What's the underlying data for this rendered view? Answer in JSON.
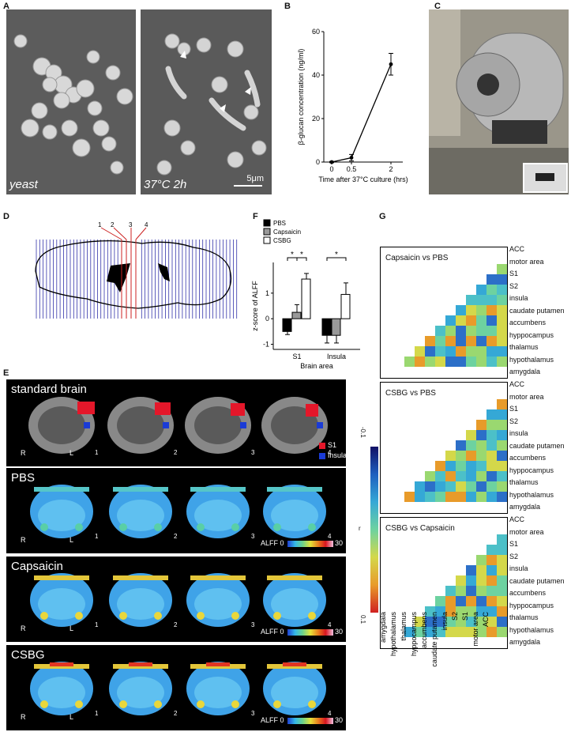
{
  "panels": {
    "A": {
      "label": "A",
      "left_caption": "yeast",
      "right_caption": "37°C 2h",
      "scale_bar": "5μm"
    },
    "B": {
      "label": "B"
    },
    "C": {
      "label": "C"
    },
    "D": {
      "label": "D",
      "slice_numbers": [
        "1",
        "2",
        "3",
        "4"
      ]
    },
    "E": {
      "label": "E",
      "rows": [
        {
          "title": "standard brain"
        },
        {
          "title": "PBS"
        },
        {
          "title": "Capsaicin"
        },
        {
          "title": "CSBG"
        }
      ],
      "side_left": "R",
      "side_right": "L",
      "legend_s1": "S1",
      "legend_insula": "Insula",
      "cb_label": "ALFF",
      "cb_min": "0",
      "cb_max": "30",
      "slice_numbers": [
        "1",
        "2",
        "3",
        "4"
      ]
    },
    "F": {
      "label": "F"
    },
    "G": {
      "label": "G",
      "matrices": [
        {
          "title": "Capsaicin vs PBS"
        },
        {
          "title": "CSBG vs PBS"
        },
        {
          "title": "CSBG vs Capsaicin"
        }
      ],
      "regions": [
        "ACC",
        "motor area",
        "S1",
        "S2",
        "insula",
        "caudate putamen",
        "accumbens",
        "hyppocampus",
        "thalamus",
        "hypothalamus",
        "amygdala"
      ],
      "cb_label": "r",
      "cb_top": "-0.1",
      "cb_bottom": "0.1"
    }
  },
  "chart_data": [
    {
      "type": "line",
      "x": [
        0,
        0.5,
        2
      ],
      "y": [
        0,
        2,
        45
      ],
      "y_err": [
        0.3,
        1.5,
        5
      ],
      "xticks": [
        "0",
        "0.5",
        "2"
      ],
      "yticks": [
        "0",
        "20",
        "40",
        "60"
      ],
      "ylim": [
        0,
        60
      ],
      "xlabel": "Time after 37°C culture (hrs)",
      "ylabel": "β-glucan concentration (ng/ml)"
    },
    {
      "type": "bar",
      "categories": [
        "S1",
        "Insula"
      ],
      "series": [
        {
          "name": "PBS",
          "values": [
            -0.5,
            -0.65
          ],
          "err": [
            0.12,
            0.3
          ],
          "color": "#000000"
        },
        {
          "name": "Capsaicin",
          "values": [
            0.25,
            -0.65
          ],
          "err": [
            0.3,
            0.3
          ],
          "color": "#999999"
        },
        {
          "name": "CSBG",
          "values": [
            1.55,
            0.95
          ],
          "err": [
            0.22,
            0.45
          ],
          "color": "#ffffff"
        }
      ],
      "ylim": [
        -1.2,
        2.2
      ],
      "yticks": [
        "-1",
        "0",
        "1"
      ],
      "xlabel": "Brain area",
      "ylabel": "z-score of ALFF",
      "significance": [
        "*",
        "*",
        "*"
      ]
    }
  ]
}
